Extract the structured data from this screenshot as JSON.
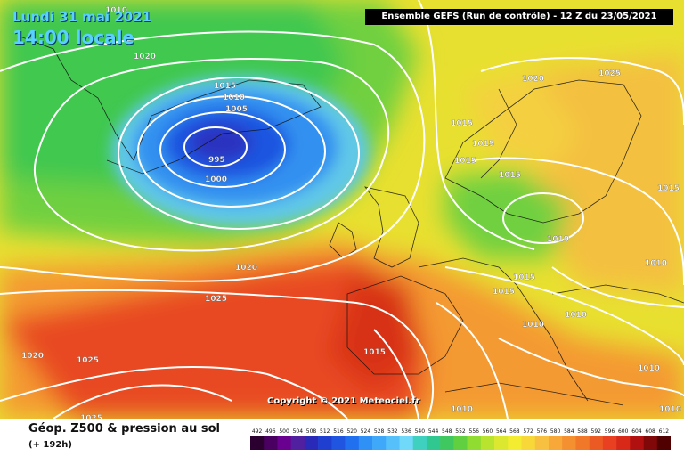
{
  "map": {
    "date_label": "Lundi 31 mai 2021",
    "time_label": "14:00 locale",
    "header": "Ensemble GEFS  (Run de contrôle)  -  12 Z du 23/05/2021",
    "copyright": "Copyright © 2021 Meteociel.fr",
    "legend_title": "Géop. Z500 & pression au sol",
    "legend_subtitle": "(+ 192h)",
    "isobar_labels": [
      {
        "text": "1020",
        "id": "iso-1"
      },
      {
        "text": "1015",
        "id": "iso-2"
      },
      {
        "text": "1010",
        "id": "iso-3"
      },
      {
        "text": "1005",
        "id": "iso-4"
      },
      {
        "text": "995",
        "id": "iso-5"
      },
      {
        "text": "1000",
        "id": "iso-6"
      },
      {
        "text": "1020",
        "id": "iso-7"
      },
      {
        "text": "1025",
        "id": "iso-8"
      },
      {
        "text": "1020",
        "id": "iso-9"
      },
      {
        "text": "1025",
        "id": "iso-10"
      },
      {
        "text": "1025",
        "id": "iso-11"
      },
      {
        "text": "1015",
        "id": "iso-12"
      },
      {
        "text": "1010",
        "id": "iso-13"
      },
      {
        "text": "1020",
        "id": "iso-14"
      },
      {
        "text": "1025",
        "id": "iso-15"
      },
      {
        "text": "1015",
        "id": "iso-16"
      },
      {
        "text": "1015",
        "id": "iso-17"
      },
      {
        "text": "1015",
        "id": "iso-18"
      },
      {
        "text": "1015",
        "id": "iso-19"
      },
      {
        "text": "1010",
        "id": "iso-20"
      },
      {
        "text": "1015",
        "id": "iso-21"
      },
      {
        "text": "1015",
        "id": "iso-22"
      },
      {
        "text": "1010",
        "id": "iso-23"
      },
      {
        "text": "1010",
        "id": "iso-24"
      },
      {
        "text": "1010",
        "id": "iso-25"
      },
      {
        "text": "1015",
        "id": "iso-26"
      },
      {
        "text": "1010",
        "id": "iso-27"
      },
      {
        "text": "1010",
        "id": "iso-28"
      },
      {
        "text": "1010",
        "id": "iso-29"
      }
    ],
    "legend_values": [
      "492",
      "496",
      "500",
      "504",
      "508",
      "512",
      "516",
      "520",
      "524",
      "528",
      "532",
      "536",
      "540",
      "544",
      "548",
      "552",
      "556",
      "560",
      "564",
      "568",
      "572",
      "576",
      "580",
      "584",
      "588",
      "592",
      "596",
      "600",
      "604",
      "608",
      "612"
    ],
    "legend_colors": [
      "#2b0030",
      "#4a0060",
      "#6a0090",
      "#5020a0",
      "#2a2ab8",
      "#1f3fd0",
      "#1f55e0",
      "#2070f0",
      "#2f90f5",
      "#40a8f8",
      "#55c0fa",
      "#70d8f8",
      "#40d0c0",
      "#30c890",
      "#40c860",
      "#60d040",
      "#90dc30",
      "#b8e430",
      "#dce830",
      "#f4ec30",
      "#f8d838",
      "#f8c040",
      "#f8a838",
      "#f49030",
      "#f07828",
      "#ec5a24",
      "#e84020",
      "#d82818",
      "#b01010",
      "#800808",
      "#500000"
    ]
  }
}
